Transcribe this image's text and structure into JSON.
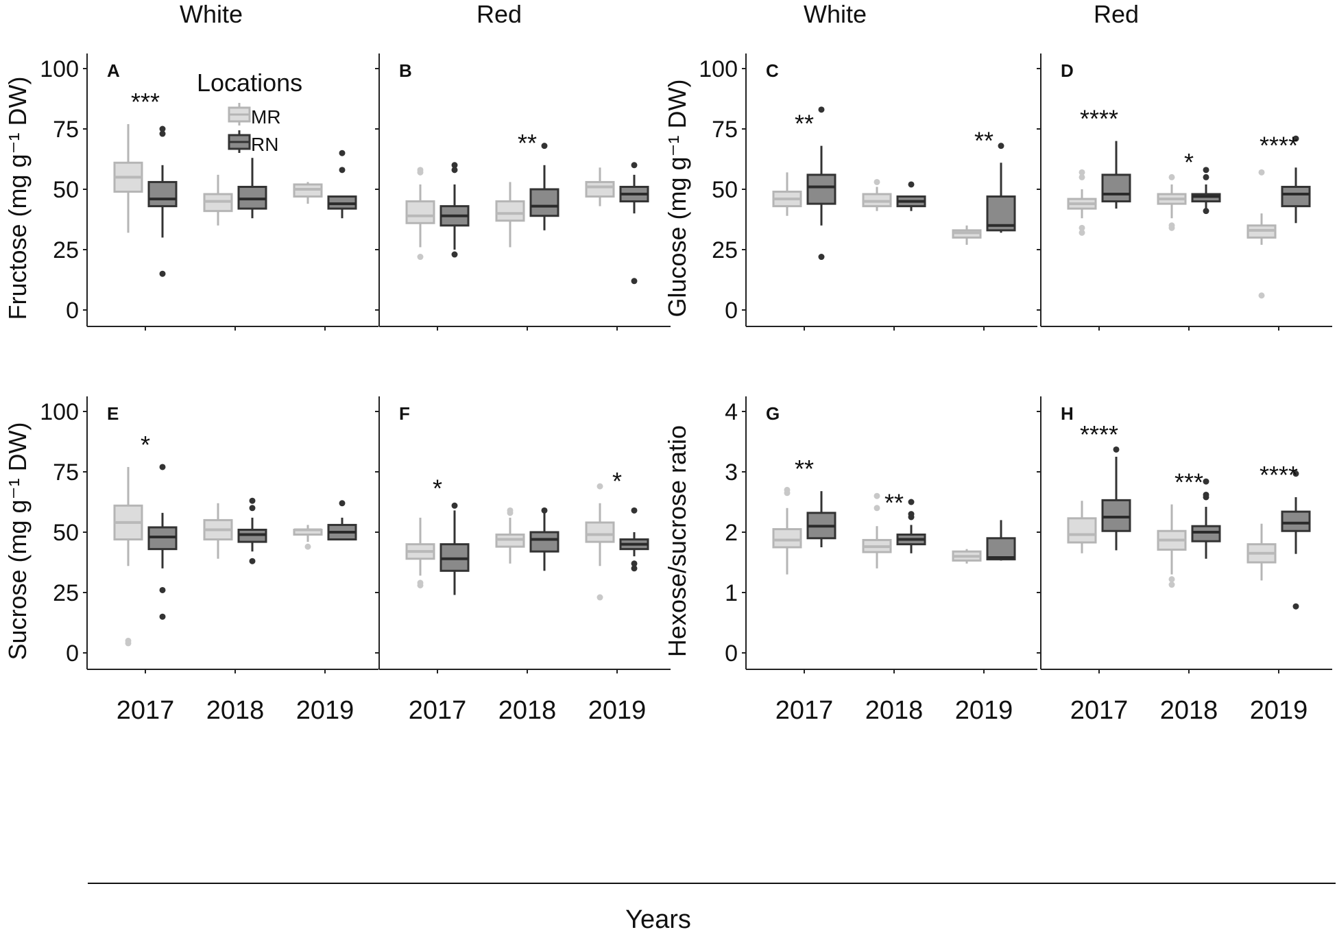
{
  "figure": {
    "column_titles": [
      "White",
      "Red",
      "White",
      "Red"
    ],
    "x_axis_title": "Years",
    "legend": {
      "title": "Locations",
      "entries": [
        {
          "label": "MR",
          "fill": "#dcdcdc",
          "stroke": "#b5b5b5"
        },
        {
          "label": "RN",
          "fill": "#8a8a8a",
          "stroke": "#333333"
        }
      ]
    }
  },
  "chart_data": [
    {
      "type": "boxplot",
      "panel": "A",
      "column": "White",
      "ylabel": "Fructose (mg g⁻¹ DW)",
      "ylim": [
        0,
        100
      ],
      "yticks": [
        0,
        25,
        50,
        75,
        100
      ],
      "categories": [
        "2017",
        "2018",
        "2019"
      ],
      "series": [
        {
          "name": "MR",
          "boxes": [
            {
              "whisker_low": 32,
              "q1": 49,
              "median": 55,
              "q3": 61,
              "whisker_high": 77,
              "outliers": []
            },
            {
              "whisker_low": 35,
              "q1": 41,
              "median": 45,
              "q3": 48,
              "whisker_high": 56,
              "outliers": []
            },
            {
              "whisker_low": 44,
              "q1": 47,
              "median": 50,
              "q3": 52,
              "whisker_high": 53,
              "outliers": []
            }
          ]
        },
        {
          "name": "RN",
          "boxes": [
            {
              "whisker_low": 30,
              "q1": 43,
              "median": 46,
              "q3": 53,
              "whisker_high": 60,
              "outliers": [
                15,
                73,
                75
              ]
            },
            {
              "whisker_low": 38,
              "q1": 42,
              "median": 46,
              "q3": 51,
              "whisker_high": 63,
              "outliers": []
            },
            {
              "whisker_low": 38,
              "q1": 42,
              "median": 44,
              "q3": 47,
              "whisker_high": 47,
              "outliers": [
                58,
                65
              ]
            }
          ]
        }
      ],
      "significance": [
        "***",
        "",
        ""
      ]
    },
    {
      "type": "boxplot",
      "panel": "B",
      "column": "Red",
      "ylabel": "",
      "ylim": [
        0,
        100
      ],
      "yticks": [
        0,
        25,
        50,
        75,
        100
      ],
      "categories": [
        "2017",
        "2018",
        "2019"
      ],
      "series": [
        {
          "name": "MR",
          "boxes": [
            {
              "whisker_low": 26,
              "q1": 36,
              "median": 39,
              "q3": 45,
              "whisker_high": 52,
              "outliers": [
                22,
                57,
                58
              ]
            },
            {
              "whisker_low": 26,
              "q1": 37,
              "median": 40,
              "q3": 45,
              "whisker_high": 53,
              "outliers": []
            },
            {
              "whisker_low": 43,
              "q1": 47,
              "median": 51,
              "q3": 53,
              "whisker_high": 59,
              "outliers": []
            }
          ]
        },
        {
          "name": "RN",
          "boxes": [
            {
              "whisker_low": 25,
              "q1": 35,
              "median": 39,
              "q3": 43,
              "whisker_high": 52,
              "outliers": [
                23,
                58,
                60
              ]
            },
            {
              "whisker_low": 33,
              "q1": 39,
              "median": 43,
              "q3": 50,
              "whisker_high": 60,
              "outliers": [
                68
              ]
            },
            {
              "whisker_low": 40,
              "q1": 45,
              "median": 48,
              "q3": 51,
              "whisker_high": 56,
              "outliers": [
                12,
                60
              ]
            }
          ]
        }
      ],
      "significance": [
        "",
        "**",
        ""
      ]
    },
    {
      "type": "boxplot",
      "panel": "C",
      "column": "White",
      "ylabel": "Glucose (mg g⁻¹ DW)",
      "ylim": [
        0,
        100
      ],
      "yticks": [
        0,
        25,
        50,
        75,
        100
      ],
      "categories": [
        "2017",
        "2018",
        "2019"
      ],
      "series": [
        {
          "name": "MR",
          "boxes": [
            {
              "whisker_low": 39,
              "q1": 43,
              "median": 46,
              "q3": 49,
              "whisker_high": 57,
              "outliers": []
            },
            {
              "whisker_low": 41,
              "q1": 43,
              "median": 45,
              "q3": 48,
              "whisker_high": 51,
              "outliers": [
                53
              ]
            },
            {
              "whisker_low": 27,
              "q1": 30,
              "median": 32,
              "q3": 33,
              "whisker_high": 35,
              "outliers": []
            }
          ]
        },
        {
          "name": "RN",
          "boxes": [
            {
              "whisker_low": 35,
              "q1": 44,
              "median": 51,
              "q3": 56,
              "whisker_high": 68,
              "outliers": [
                22,
                83
              ]
            },
            {
              "whisker_low": 41,
              "q1": 43,
              "median": 45,
              "q3": 47,
              "whisker_high": 47,
              "outliers": [
                52
              ]
            },
            {
              "whisker_low": 32,
              "q1": 33,
              "median": 35,
              "q3": 47,
              "whisker_high": 61,
              "outliers": [
                68
              ]
            }
          ]
        }
      ],
      "significance": [
        "**",
        "",
        "**"
      ]
    },
    {
      "type": "boxplot",
      "panel": "D",
      "column": "Red",
      "ylabel": "",
      "ylim": [
        0,
        100
      ],
      "yticks": [
        0,
        25,
        50,
        75,
        100
      ],
      "categories": [
        "2017",
        "2018",
        "2019"
      ],
      "series": [
        {
          "name": "MR",
          "boxes": [
            {
              "whisker_low": 38,
              "q1": 42,
              "median": 44,
              "q3": 46,
              "whisker_high": 50,
              "outliers": [
                32,
                34,
                55,
                57
              ]
            },
            {
              "whisker_low": 38,
              "q1": 44,
              "median": 46,
              "q3": 48,
              "whisker_high": 52,
              "outliers": [
                34,
                35,
                55
              ]
            },
            {
              "whisker_low": 27,
              "q1": 30,
              "median": 33,
              "q3": 35,
              "whisker_high": 40,
              "outliers": [
                6,
                57
              ]
            }
          ]
        },
        {
          "name": "RN",
          "boxes": [
            {
              "whisker_low": 42,
              "q1": 45,
              "median": 48,
              "q3": 56,
              "whisker_high": 70,
              "outliers": []
            },
            {
              "whisker_low": 42,
              "q1": 45,
              "median": 47,
              "q3": 48,
              "whisker_high": 52,
              "outliers": [
                41,
                55,
                58
              ]
            },
            {
              "whisker_low": 36,
              "q1": 43,
              "median": 48,
              "q3": 51,
              "whisker_high": 59,
              "outliers": [
                71
              ]
            }
          ]
        }
      ],
      "significance": [
        "****",
        "*",
        "****"
      ]
    },
    {
      "type": "boxplot",
      "panel": "E",
      "column": "White",
      "ylabel": "Sucrose (mg g⁻¹ DW)",
      "ylim": [
        0,
        100
      ],
      "yticks": [
        0,
        25,
        50,
        75,
        100
      ],
      "categories": [
        "2017",
        "2018",
        "2019"
      ],
      "series": [
        {
          "name": "MR",
          "boxes": [
            {
              "whisker_low": 36,
              "q1": 47,
              "median": 54,
              "q3": 61,
              "whisker_high": 77,
              "outliers": [
                4,
                5
              ]
            },
            {
              "whisker_low": 39,
              "q1": 47,
              "median": 51,
              "q3": 55,
              "whisker_high": 62,
              "outliers": []
            },
            {
              "whisker_low": 46,
              "q1": 49,
              "median": 51,
              "q3": 51,
              "whisker_high": 53,
              "outliers": [
                44
              ]
            }
          ]
        },
        {
          "name": "RN",
          "boxes": [
            {
              "whisker_low": 35,
              "q1": 43,
              "median": 48,
              "q3": 52,
              "whisker_high": 58,
              "outliers": [
                15,
                26,
                77
              ]
            },
            {
              "whisker_low": 42,
              "q1": 46,
              "median": 49,
              "q3": 51,
              "whisker_high": 56,
              "outliers": [
                38,
                60,
                63
              ]
            },
            {
              "whisker_low": 47,
              "q1": 47,
              "median": 50,
              "q3": 53,
              "whisker_high": 56,
              "outliers": [
                62
              ]
            }
          ]
        }
      ],
      "significance": [
        "*",
        "",
        ""
      ]
    },
    {
      "type": "boxplot",
      "panel": "F",
      "column": "Red",
      "ylabel": "",
      "ylim": [
        0,
        100
      ],
      "yticks": [
        0,
        25,
        50,
        75,
        100
      ],
      "categories": [
        "2017",
        "2018",
        "2019"
      ],
      "series": [
        {
          "name": "MR",
          "boxes": [
            {
              "whisker_low": 32,
              "q1": 39,
              "median": 42,
              "q3": 45,
              "whisker_high": 56,
              "outliers": [
                28,
                29
              ]
            },
            {
              "whisker_low": 37,
              "q1": 44,
              "median": 47,
              "q3": 49,
              "whisker_high": 56,
              "outliers": [
                58,
                59
              ]
            },
            {
              "whisker_low": 36,
              "q1": 46,
              "median": 49,
              "q3": 54,
              "whisker_high": 62,
              "outliers": [
                23,
                69
              ]
            }
          ]
        },
        {
          "name": "RN",
          "boxes": [
            {
              "whisker_low": 24,
              "q1": 34,
              "median": 39,
              "q3": 45,
              "whisker_high": 59,
              "outliers": [
                61
              ]
            },
            {
              "whisker_low": 34,
              "q1": 42,
              "median": 47,
              "q3": 50,
              "whisker_high": 58,
              "outliers": [
                59
              ]
            },
            {
              "whisker_low": 40,
              "q1": 43,
              "median": 45,
              "q3": 47,
              "whisker_high": 50,
              "outliers": [
                35,
                37,
                59
              ]
            }
          ]
        }
      ],
      "significance": [
        "*",
        "",
        "*"
      ]
    },
    {
      "type": "boxplot",
      "panel": "G",
      "column": "White",
      "ylabel": "Hexose/sucrose ratio",
      "ylim": [
        0,
        4
      ],
      "yticks": [
        0,
        1,
        2,
        3,
        4
      ],
      "categories": [
        "2017",
        "2018",
        "2019"
      ],
      "series": [
        {
          "name": "MR",
          "boxes": [
            {
              "whisker_low": 1.3,
              "q1": 1.75,
              "median": 1.87,
              "q3": 2.05,
              "whisker_high": 2.4,
              "outliers": [
                2.65,
                2.7
              ]
            },
            {
              "whisker_low": 1.4,
              "q1": 1.67,
              "median": 1.76,
              "q3": 1.87,
              "whisker_high": 2.1,
              "outliers": [
                2.4,
                2.6
              ]
            },
            {
              "whisker_low": 1.48,
              "q1": 1.53,
              "median": 1.6,
              "q3": 1.68,
              "whisker_high": 1.72,
              "outliers": []
            }
          ]
        },
        {
          "name": "RN",
          "boxes": [
            {
              "whisker_low": 1.75,
              "q1": 1.9,
              "median": 2.1,
              "q3": 2.32,
              "whisker_high": 2.68,
              "outliers": []
            },
            {
              "whisker_low": 1.65,
              "q1": 1.8,
              "median": 1.88,
              "q3": 1.96,
              "whisker_high": 2.12,
              "outliers": [
                2.25,
                2.3,
                2.5
              ]
            },
            {
              "whisker_low": 1.53,
              "q1": 1.55,
              "median": 1.58,
              "q3": 1.9,
              "whisker_high": 2.2,
              "outliers": []
            }
          ]
        }
      ],
      "significance": [
        "**",
        "**",
        ""
      ]
    },
    {
      "type": "boxplot",
      "panel": "H",
      "column": "Red",
      "ylabel": "",
      "ylim": [
        0,
        4
      ],
      "yticks": [
        0,
        1,
        2,
        3,
        4
      ],
      "categories": [
        "2017",
        "2018",
        "2019"
      ],
      "series": [
        {
          "name": "MR",
          "boxes": [
            {
              "whisker_low": 1.65,
              "q1": 1.83,
              "median": 1.96,
              "q3": 2.23,
              "whisker_high": 2.52,
              "outliers": []
            },
            {
              "whisker_low": 1.3,
              "q1": 1.71,
              "median": 1.87,
              "q3": 2.02,
              "whisker_high": 2.46,
              "outliers": [
                1.13,
                1.22
              ]
            },
            {
              "whisker_low": 1.2,
              "q1": 1.5,
              "median": 1.65,
              "q3": 1.8,
              "whisker_high": 2.14,
              "outliers": []
            }
          ]
        },
        {
          "name": "RN",
          "boxes": [
            {
              "whisker_low": 1.7,
              "q1": 2.02,
              "median": 2.25,
              "q3": 2.53,
              "whisker_high": 3.25,
              "outliers": [
                3.37
              ]
            },
            {
              "whisker_low": 1.56,
              "q1": 1.85,
              "median": 2.0,
              "q3": 2.1,
              "whisker_high": 2.42,
              "outliers": [
                2.58,
                2.62,
                2.84
              ]
            },
            {
              "whisker_low": 1.64,
              "q1": 2.02,
              "median": 2.15,
              "q3": 2.34,
              "whisker_high": 2.58,
              "outliers": [
                0.77,
                2.97
              ]
            }
          ]
        }
      ],
      "significance": [
        "****",
        "***",
        "****"
      ]
    }
  ]
}
